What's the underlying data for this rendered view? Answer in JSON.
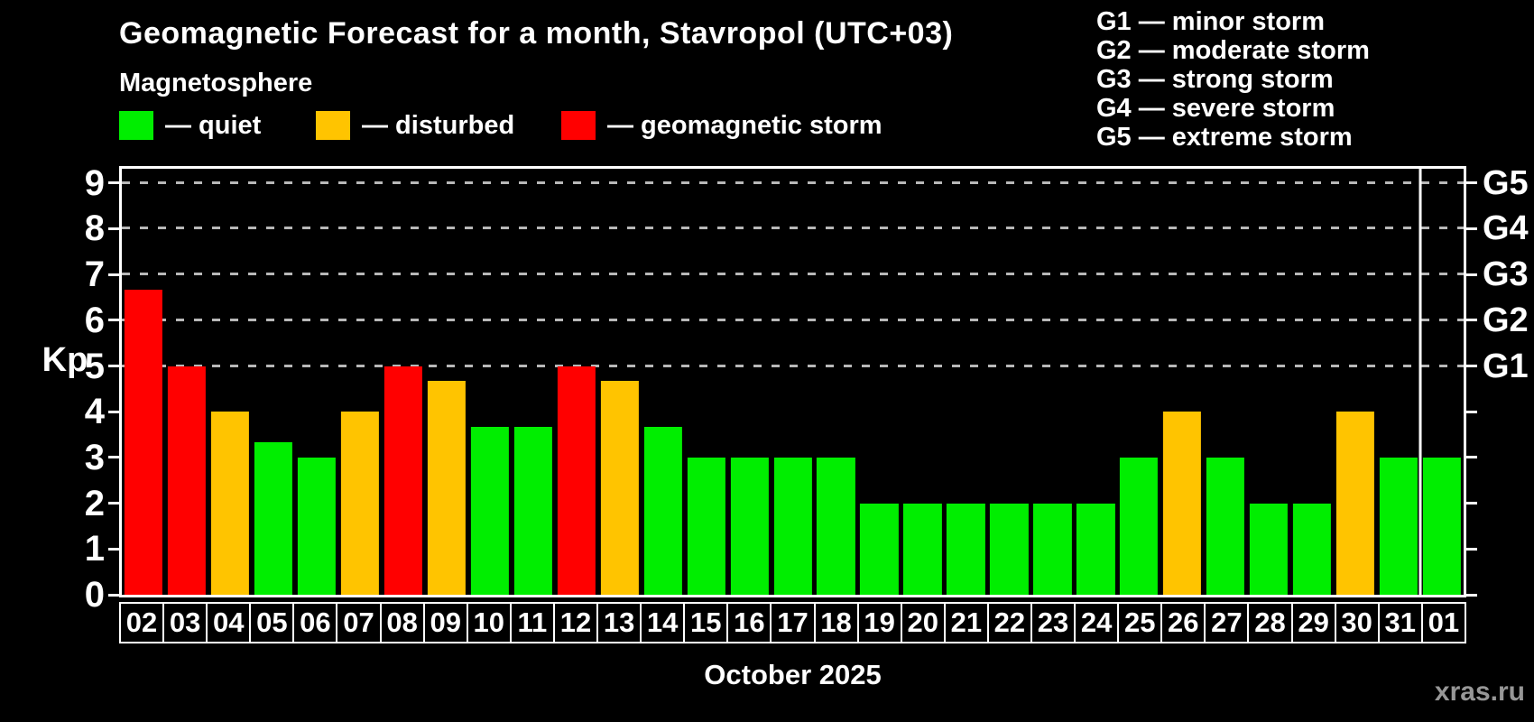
{
  "header": {
    "title": "Geomagnetic Forecast for a month, Stavropol (UTC+03)"
  },
  "legend": {
    "title": "Magnetosphere",
    "items": [
      {
        "key": "quiet",
        "label": "— quiet",
        "color": "#00ee00"
      },
      {
        "key": "disturbed",
        "label": "— disturbed",
        "color": "#ffc400"
      },
      {
        "key": "storm",
        "label": "— geomagnetic storm",
        "color": "#ff0000"
      }
    ]
  },
  "storm_scale_legend": {
    "items": [
      "G1 — minor storm",
      "G2 — moderate storm",
      "G3 — strong storm",
      "G4 — severe storm",
      "G5 — extreme storm"
    ]
  },
  "chart_data": {
    "type": "bar",
    "title": "Geomagnetic Forecast for a month, Stavropol (UTC+03)",
    "xlabel": "October 2025",
    "ylabel": "Kp",
    "ylim": [
      0,
      9
    ],
    "yticks": [
      0,
      1,
      2,
      3,
      4,
      5,
      6,
      7,
      8,
      9
    ],
    "gridlines_at": [
      5,
      6,
      7,
      8,
      9
    ],
    "grid": "dashed horizontal at Kp 5-9 only",
    "legend_position": "top",
    "right_axis_labels": [
      {
        "value": 5,
        "label": "G1"
      },
      {
        "value": 6,
        "label": "G2"
      },
      {
        "value": 7,
        "label": "G3"
      },
      {
        "value": 8,
        "label": "G4"
      },
      {
        "value": 9,
        "label": "G5"
      }
    ],
    "categories": [
      "02",
      "03",
      "04",
      "05",
      "06",
      "07",
      "08",
      "09",
      "10",
      "11",
      "12",
      "13",
      "14",
      "15",
      "16",
      "17",
      "18",
      "19",
      "20",
      "21",
      "22",
      "23",
      "24",
      "25",
      "26",
      "27",
      "28",
      "29",
      "30",
      "31",
      "01"
    ],
    "values": [
      6.67,
      5,
      4,
      3.33,
      3,
      4,
      5,
      4.67,
      3.67,
      3.67,
      5,
      4.67,
      3.67,
      3,
      3,
      3,
      3,
      2,
      2,
      2,
      2,
      2,
      2,
      3,
      4,
      3,
      2,
      2,
      4,
      3,
      3
    ],
    "levels": [
      "storm",
      "storm",
      "disturbed",
      "quiet",
      "quiet",
      "disturbed",
      "storm",
      "disturbed",
      "quiet",
      "quiet",
      "storm",
      "disturbed",
      "quiet",
      "quiet",
      "quiet",
      "quiet",
      "quiet",
      "quiet",
      "quiet",
      "quiet",
      "quiet",
      "quiet",
      "quiet",
      "quiet",
      "disturbed",
      "quiet",
      "quiet",
      "quiet",
      "disturbed",
      "quiet",
      "quiet"
    ],
    "colors": {
      "quiet": "#00ee00",
      "disturbed": "#ffc400",
      "storm": "#ff0000"
    },
    "month_separator_after_index": 29
  },
  "x_axis": {
    "title": "October 2025"
  },
  "watermark": "xras.ru"
}
